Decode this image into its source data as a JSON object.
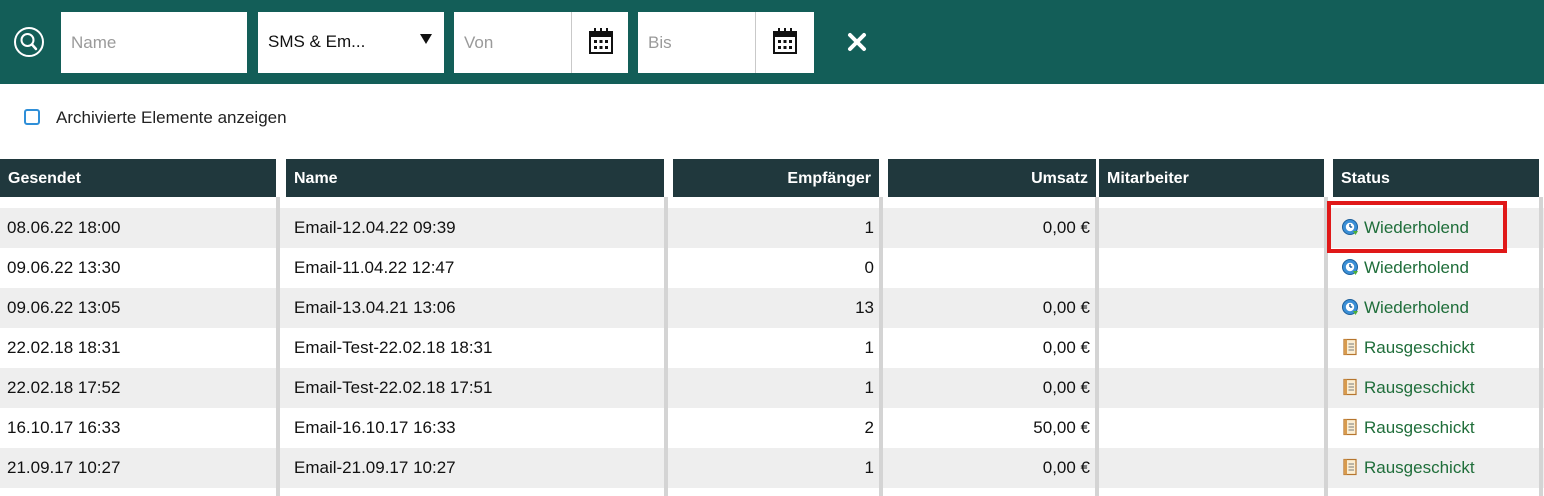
{
  "filters": {
    "name_placeholder": "Name",
    "type_select_value": "SMS & Em...",
    "from_placeholder": "Von",
    "to_placeholder": "Bis"
  },
  "archive": {
    "label": "Archivierte Elemente anzeigen",
    "checked": false
  },
  "table": {
    "headers": [
      "Gesendet",
      "Name",
      "Empfänger",
      "Umsatz",
      "Mitarbeiter",
      "Status"
    ],
    "rows": [
      {
        "gesendet": "08.06.22 18:00",
        "name": "Email-12.04.22 09:39",
        "empfaenger": "1",
        "umsatz": "0,00 €",
        "mitarbeiter": "",
        "status": "Wiederholend",
        "status_icon": "recurring-icon"
      },
      {
        "gesendet": "09.06.22 13:30",
        "name": "Email-11.04.22 12:47",
        "empfaenger": "0",
        "umsatz": "",
        "mitarbeiter": "",
        "status": "Wiederholend",
        "status_icon": "recurring-icon"
      },
      {
        "gesendet": "09.06.22 13:05",
        "name": "Email-13.04.21 13:06",
        "empfaenger": "13",
        "umsatz": "0,00 €",
        "mitarbeiter": "",
        "status": "Wiederholend",
        "status_icon": "recurring-icon"
      },
      {
        "gesendet": "22.02.18 18:31",
        "name": "Email-Test-22.02.18 18:31",
        "empfaenger": "1",
        "umsatz": "0,00 €",
        "mitarbeiter": "",
        "status": "Rausgeschickt",
        "status_icon": "sent-document-icon"
      },
      {
        "gesendet": "22.02.18 17:52",
        "name": "Email-Test-22.02.18 17:51",
        "empfaenger": "1",
        "umsatz": "0,00 €",
        "mitarbeiter": "",
        "status": "Rausgeschickt",
        "status_icon": "sent-document-icon"
      },
      {
        "gesendet": "16.10.17 16:33",
        "name": "Email-16.10.17 16:33",
        "empfaenger": "2",
        "umsatz": "50,00 €",
        "mitarbeiter": "",
        "status": "Rausgeschickt",
        "status_icon": "sent-document-icon"
      },
      {
        "gesendet": "21.09.17 10:27",
        "name": "Email-21.09.17 10:27",
        "empfaenger": "1",
        "umsatz": "0,00 €",
        "mitarbeiter": "",
        "status": "Rausgeschickt",
        "status_icon": "sent-document-icon"
      }
    ]
  },
  "colors": {
    "toolbar_bg": "#135e58",
    "header_bg": "#20383d",
    "status_text": "#1f6e3a",
    "highlight": "#e01818"
  }
}
